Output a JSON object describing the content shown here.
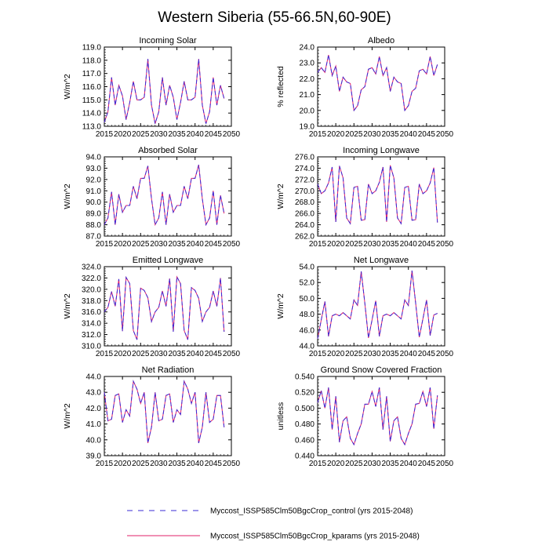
{
  "figure": {
    "title": "Western Siberia (55-66.5N,60-90E)"
  },
  "colors": {
    "control": "#3a2bd6",
    "kparams": "#e0206a"
  },
  "legend": [
    {
      "label": "Myccost_ISSP585Clm50BgcCrop_control (yrs 2015-2048)",
      "style": "dashed",
      "color_key": "control"
    },
    {
      "label": "Myccost_ISSP585Clm50BgcCrop_kparams (yrs 2015-2048)",
      "style": "solid",
      "color_key": "kparams"
    }
  ],
  "chart_data": [
    {
      "type": "line",
      "title": "Incoming Solar",
      "xlabel": "",
      "ylabel": "W/m^2",
      "xlim": [
        2015,
        2050
      ],
      "ylim": [
        113.0,
        119.0
      ],
      "xticks": [
        2015,
        2020,
        2025,
        2030,
        2035,
        2040,
        2045,
        2050
      ],
      "yticks": [
        "113.0",
        "114.0",
        "115.0",
        "116.0",
        "117.0",
        "118.0",
        "119.0"
      ],
      "x": [
        2015,
        2016,
        2017,
        2018,
        2019,
        2020,
        2021,
        2022,
        2023,
        2024,
        2025,
        2026,
        2027,
        2028,
        2029,
        2030,
        2031,
        2032,
        2033,
        2034,
        2035,
        2036,
        2037,
        2038,
        2039,
        2040,
        2041,
        2042,
        2043,
        2044,
        2045,
        2046,
        2047,
        2048
      ],
      "series": [
        {
          "name": "control",
          "values": [
            113.3,
            114.1,
            116.7,
            114.6,
            116.1,
            115.3,
            113.5,
            114.8,
            116.4,
            115.0,
            115.0,
            115.2,
            118.1,
            114.6,
            113.2,
            114.1,
            116.7,
            114.6,
            116.1,
            115.2,
            113.5,
            114.8,
            116.4,
            115.0,
            115.0,
            115.2,
            118.1,
            114.6,
            113.2,
            114.1,
            116.7,
            114.6,
            116.1,
            115.1
          ]
        },
        {
          "name": "kparams",
          "values": [
            113.3,
            114.1,
            116.7,
            114.6,
            116.1,
            115.3,
            113.5,
            114.8,
            116.4,
            115.0,
            115.0,
            115.2,
            118.1,
            114.6,
            113.2,
            114.1,
            116.7,
            114.6,
            116.1,
            115.2,
            113.5,
            114.8,
            116.4,
            115.0,
            115.0,
            115.2,
            118.1,
            114.6,
            113.2,
            114.1,
            116.7,
            114.6,
            116.1,
            115.1
          ]
        }
      ]
    },
    {
      "type": "line",
      "title": "Albedo",
      "xlabel": "",
      "ylabel": "% reflected",
      "xlim": [
        2015,
        2050
      ],
      "ylim": [
        19.0,
        24.0
      ],
      "xticks": [
        2015,
        2020,
        2025,
        2030,
        2035,
        2040,
        2045,
        2050
      ],
      "yticks": [
        "19.0",
        "20.0",
        "21.0",
        "22.0",
        "23.0",
        "24.0"
      ],
      "x": [
        2015,
        2016,
        2017,
        2018,
        2019,
        2020,
        2021,
        2022,
        2023,
        2024,
        2025,
        2026,
        2027,
        2028,
        2029,
        2030,
        2031,
        2032,
        2033,
        2034,
        2035,
        2036,
        2037,
        2038,
        2039,
        2040,
        2041,
        2042,
        2043,
        2044,
        2045,
        2046,
        2047,
        2048
      ],
      "series": [
        {
          "name": "control",
          "values": [
            22.4,
            22.7,
            22.4,
            23.5,
            22.2,
            22.8,
            21.2,
            22.1,
            21.8,
            21.7,
            20.0,
            20.3,
            21.3,
            21.5,
            22.6,
            22.7,
            22.3,
            23.4,
            22.2,
            22.7,
            21.2,
            22.1,
            21.8,
            21.7,
            20.0,
            20.3,
            21.2,
            21.4,
            22.5,
            22.6,
            22.3,
            23.4,
            22.2,
            22.9
          ]
        },
        {
          "name": "kparams",
          "values": [
            22.4,
            22.7,
            22.4,
            23.5,
            22.2,
            22.8,
            21.2,
            22.1,
            21.8,
            21.7,
            20.0,
            20.3,
            21.3,
            21.5,
            22.6,
            22.7,
            22.3,
            23.4,
            22.2,
            22.7,
            21.2,
            22.1,
            21.8,
            21.7,
            20.0,
            20.3,
            21.2,
            21.4,
            22.5,
            22.6,
            22.3,
            23.4,
            22.2,
            22.9
          ]
        }
      ]
    },
    {
      "type": "line",
      "title": "Absorbed Solar",
      "xlabel": "",
      "ylabel": "W/m^2",
      "xlim": [
        2015,
        2050
      ],
      "ylim": [
        87.0,
        94.0
      ],
      "xticks": [
        2015,
        2020,
        2025,
        2030,
        2035,
        2040,
        2045,
        2050
      ],
      "yticks": [
        "87.0",
        "88.0",
        "89.0",
        "90.0",
        "91.0",
        "92.0",
        "93.0",
        "94.0"
      ],
      "x": [
        2015,
        2016,
        2017,
        2018,
        2019,
        2020,
        2021,
        2022,
        2023,
        2024,
        2025,
        2026,
        2027,
        2028,
        2029,
        2030,
        2031,
        2032,
        2033,
        2034,
        2035,
        2036,
        2037,
        2038,
        2039,
        2040,
        2041,
        2042,
        2043,
        2044,
        2045,
        2046,
        2047,
        2048
      ],
      "series": [
        {
          "name": "control",
          "values": [
            88.0,
            88.6,
            90.9,
            88.0,
            90.7,
            89.1,
            89.7,
            89.7,
            91.4,
            90.3,
            92.1,
            92.1,
            93.2,
            90.3,
            88.0,
            88.6,
            90.9,
            88.0,
            90.7,
            89.1,
            89.7,
            89.7,
            91.4,
            90.3,
            92.1,
            92.1,
            93.3,
            90.3,
            88.0,
            88.6,
            91.0,
            88.0,
            90.6,
            89.0
          ]
        },
        {
          "name": "kparams",
          "values": [
            88.0,
            88.6,
            90.9,
            88.0,
            90.7,
            89.1,
            89.7,
            89.7,
            91.4,
            90.3,
            92.1,
            92.1,
            93.2,
            90.3,
            88.0,
            88.6,
            90.9,
            88.0,
            90.7,
            89.1,
            89.7,
            89.7,
            91.4,
            90.3,
            92.1,
            92.1,
            93.3,
            90.3,
            88.0,
            88.6,
            91.0,
            88.0,
            90.6,
            89.0
          ]
        }
      ]
    },
    {
      "type": "line",
      "title": "Incoming Longwave",
      "xlabel": "",
      "ylabel": "W/m^2",
      "xlim": [
        2015,
        2050
      ],
      "ylim": [
        262.0,
        276.0
      ],
      "xticks": [
        2015,
        2020,
        2025,
        2030,
        2035,
        2040,
        2045,
        2050
      ],
      "yticks": [
        "262.0",
        "264.0",
        "266.0",
        "268.0",
        "270.0",
        "272.0",
        "274.0",
        "276.0"
      ],
      "x": [
        2015,
        2016,
        2017,
        2018,
        2019,
        2020,
        2021,
        2022,
        2023,
        2024,
        2025,
        2026,
        2027,
        2028,
        2029,
        2030,
        2031,
        2032,
        2033,
        2034,
        2035,
        2036,
        2037,
        2038,
        2039,
        2040,
        2041,
        2042,
        2043,
        2044,
        2045,
        2046,
        2047,
        2048
      ],
      "series": [
        {
          "name": "control",
          "values": [
            271.2,
            269.5,
            270.0,
            271.4,
            274.2,
            264.5,
            274.4,
            272.3,
            265.2,
            264.2,
            270.6,
            270.8,
            264.8,
            264.9,
            271.2,
            269.5,
            270.0,
            271.5,
            274.2,
            264.5,
            274.5,
            272.3,
            265.2,
            264.2,
            270.6,
            270.8,
            264.8,
            264.9,
            271.2,
            269.5,
            270.0,
            271.4,
            274.1,
            264.4
          ]
        },
        {
          "name": "kparams",
          "values": [
            271.2,
            269.5,
            270.0,
            271.4,
            274.2,
            264.5,
            274.4,
            272.3,
            265.2,
            264.2,
            270.6,
            270.8,
            264.8,
            264.9,
            271.2,
            269.5,
            270.0,
            271.5,
            274.2,
            264.5,
            274.5,
            272.3,
            265.2,
            264.2,
            270.6,
            270.8,
            264.8,
            264.9,
            271.2,
            269.5,
            270.0,
            271.4,
            274.1,
            264.4
          ]
        }
      ]
    },
    {
      "type": "line",
      "title": "Emitted Longwave",
      "xlabel": "",
      "ylabel": "W/m^2",
      "xlim": [
        2015,
        2050
      ],
      "ylim": [
        310.0,
        324.0
      ],
      "xticks": [
        2015,
        2020,
        2025,
        2030,
        2035,
        2040,
        2045,
        2050
      ],
      "yticks": [
        "310.0",
        "312.0",
        "314.0",
        "316.0",
        "318.0",
        "320.0",
        "322.0",
        "324.0"
      ],
      "x": [
        2015,
        2016,
        2017,
        2018,
        2019,
        2020,
        2021,
        2022,
        2023,
        2024,
        2025,
        2026,
        2027,
        2028,
        2029,
        2030,
        2031,
        2032,
        2033,
        2034,
        2035,
        2036,
        2037,
        2038,
        2039,
        2040,
        2041,
        2042,
        2043,
        2044,
        2045,
        2046,
        2047,
        2048
      ],
      "series": [
        {
          "name": "control",
          "values": [
            316.0,
            316.8,
            319.6,
            317.0,
            321.8,
            312.6,
            322.1,
            321.0,
            312.7,
            311.1,
            320.2,
            319.8,
            318.5,
            314.3,
            316.0,
            316.8,
            319.7,
            317.0,
            321.9,
            312.5,
            322.2,
            321.0,
            312.7,
            311.1,
            320.3,
            319.8,
            318.4,
            314.3,
            316.0,
            316.8,
            319.7,
            317.0,
            322.0,
            312.5
          ]
        },
        {
          "name": "kparams",
          "values": [
            316.0,
            316.8,
            319.6,
            317.0,
            321.8,
            312.6,
            322.1,
            321.0,
            312.7,
            311.1,
            320.2,
            319.8,
            318.5,
            314.3,
            316.0,
            316.8,
            319.7,
            317.0,
            321.9,
            312.5,
            322.2,
            321.0,
            312.7,
            311.1,
            320.3,
            319.8,
            318.4,
            314.3,
            316.0,
            316.8,
            319.7,
            317.0,
            322.0,
            312.5
          ]
        }
      ]
    },
    {
      "type": "line",
      "title": "Net Longwave",
      "xlabel": "",
      "ylabel": "W/m^2",
      "xlim": [
        2015,
        2050
      ],
      "ylim": [
        44.0,
        54.0
      ],
      "xticks": [
        2015,
        2020,
        2025,
        2030,
        2035,
        2040,
        2045,
        2050
      ],
      "yticks": [
        "44.0",
        "46.0",
        "48.0",
        "50.0",
        "52.0",
        "54.0"
      ],
      "x": [
        2015,
        2016,
        2017,
        2018,
        2019,
        2020,
        2021,
        2022,
        2023,
        2024,
        2025,
        2026,
        2027,
        2028,
        2029,
        2030,
        2031,
        2032,
        2033,
        2034,
        2035,
        2036,
        2037,
        2038,
        2039,
        2040,
        2041,
        2042,
        2043,
        2044,
        2045,
        2046,
        2047,
        2048
      ],
      "series": [
        {
          "name": "control",
          "values": [
            44.9,
            47.3,
            49.6,
            45.2,
            47.8,
            48.0,
            47.8,
            48.2,
            47.8,
            47.4,
            49.8,
            49.1,
            53.4,
            49.4,
            45.0,
            47.3,
            49.7,
            45.2,
            47.8,
            48.0,
            47.8,
            48.2,
            47.8,
            47.4,
            49.8,
            49.1,
            53.5,
            49.4,
            45.1,
            47.4,
            49.8,
            45.3,
            47.9,
            48.1
          ]
        },
        {
          "name": "kparams",
          "values": [
            44.9,
            47.3,
            49.6,
            45.2,
            47.8,
            48.0,
            47.8,
            48.2,
            47.8,
            47.4,
            49.8,
            49.1,
            53.4,
            49.4,
            45.0,
            47.3,
            49.7,
            45.2,
            47.8,
            48.0,
            47.8,
            48.2,
            47.8,
            47.4,
            49.8,
            49.1,
            53.5,
            49.4,
            45.1,
            47.4,
            49.8,
            45.3,
            47.9,
            48.1
          ]
        }
      ]
    },
    {
      "type": "line",
      "title": "Net Radiation",
      "xlabel": "",
      "ylabel": "W/m^2",
      "xlim": [
        2015,
        2050
      ],
      "ylim": [
        39.0,
        44.0
      ],
      "xticks": [
        2015,
        2020,
        2025,
        2030,
        2035,
        2040,
        2045,
        2050
      ],
      "yticks": [
        "39.0",
        "40.0",
        "41.0",
        "42.0",
        "43.0",
        "44.0"
      ],
      "x": [
        2015,
        2016,
        2017,
        2018,
        2019,
        2020,
        2021,
        2022,
        2023,
        2024,
        2025,
        2026,
        2027,
        2028,
        2029,
        2030,
        2031,
        2032,
        2033,
        2034,
        2035,
        2036,
        2037,
        2038,
        2039,
        2040,
        2041,
        2042,
        2043,
        2044,
        2045,
        2046,
        2047,
        2048
      ],
      "series": [
        {
          "name": "control",
          "values": [
            43.0,
            41.2,
            41.3,
            42.8,
            42.9,
            41.1,
            41.9,
            41.5,
            43.7,
            43.2,
            42.3,
            43.0,
            39.8,
            40.8,
            43.0,
            41.2,
            41.3,
            42.8,
            42.9,
            41.1,
            41.9,
            41.6,
            43.7,
            43.2,
            42.3,
            43.0,
            39.8,
            40.8,
            43.0,
            41.1,
            41.3,
            42.8,
            42.8,
            40.8
          ]
        },
        {
          "name": "kparams",
          "values": [
            43.0,
            41.2,
            41.3,
            42.8,
            42.9,
            41.1,
            41.9,
            41.5,
            43.7,
            43.2,
            42.3,
            43.0,
            39.8,
            40.8,
            43.0,
            41.2,
            41.3,
            42.8,
            42.9,
            41.1,
            41.9,
            41.6,
            43.7,
            43.2,
            42.3,
            43.0,
            39.8,
            40.8,
            43.0,
            41.1,
            41.3,
            42.8,
            42.8,
            40.8
          ]
        }
      ]
    },
    {
      "type": "line",
      "title": "Ground Snow Covered Fraction",
      "xlabel": "",
      "ylabel": "unitless",
      "xlim": [
        2015,
        2050
      ],
      "ylim": [
        0.44,
        0.54
      ],
      "xticks": [
        2015,
        2020,
        2025,
        2030,
        2035,
        2040,
        2045,
        2050
      ],
      "yticks": [
        "0.440",
        "0.460",
        "0.480",
        "0.500",
        "0.520",
        "0.540"
      ],
      "x": [
        2015,
        2016,
        2017,
        2018,
        2019,
        2020,
        2021,
        2022,
        2023,
        2024,
        2025,
        2026,
        2027,
        2028,
        2029,
        2030,
        2031,
        2032,
        2033,
        2034,
        2035,
        2036,
        2037,
        2038,
        2039,
        2040,
        2041,
        2042,
        2043,
        2044,
        2045,
        2046,
        2047,
        2048
      ],
      "series": [
        {
          "name": "control",
          "values": [
            0.507,
            0.522,
            0.5,
            0.526,
            0.473,
            0.515,
            0.457,
            0.484,
            0.489,
            0.462,
            0.454,
            0.468,
            0.48,
            0.505,
            0.505,
            0.521,
            0.502,
            0.526,
            0.473,
            0.515,
            0.458,
            0.484,
            0.489,
            0.462,
            0.454,
            0.468,
            0.48,
            0.505,
            0.506,
            0.521,
            0.502,
            0.526,
            0.474,
            0.516
          ]
        },
        {
          "name": "kparams",
          "values": [
            0.507,
            0.522,
            0.5,
            0.526,
            0.473,
            0.515,
            0.457,
            0.484,
            0.489,
            0.462,
            0.454,
            0.468,
            0.48,
            0.505,
            0.505,
            0.521,
            0.502,
            0.526,
            0.473,
            0.515,
            0.458,
            0.484,
            0.489,
            0.462,
            0.454,
            0.468,
            0.48,
            0.505,
            0.506,
            0.521,
            0.502,
            0.526,
            0.474,
            0.516
          ]
        }
      ]
    }
  ]
}
